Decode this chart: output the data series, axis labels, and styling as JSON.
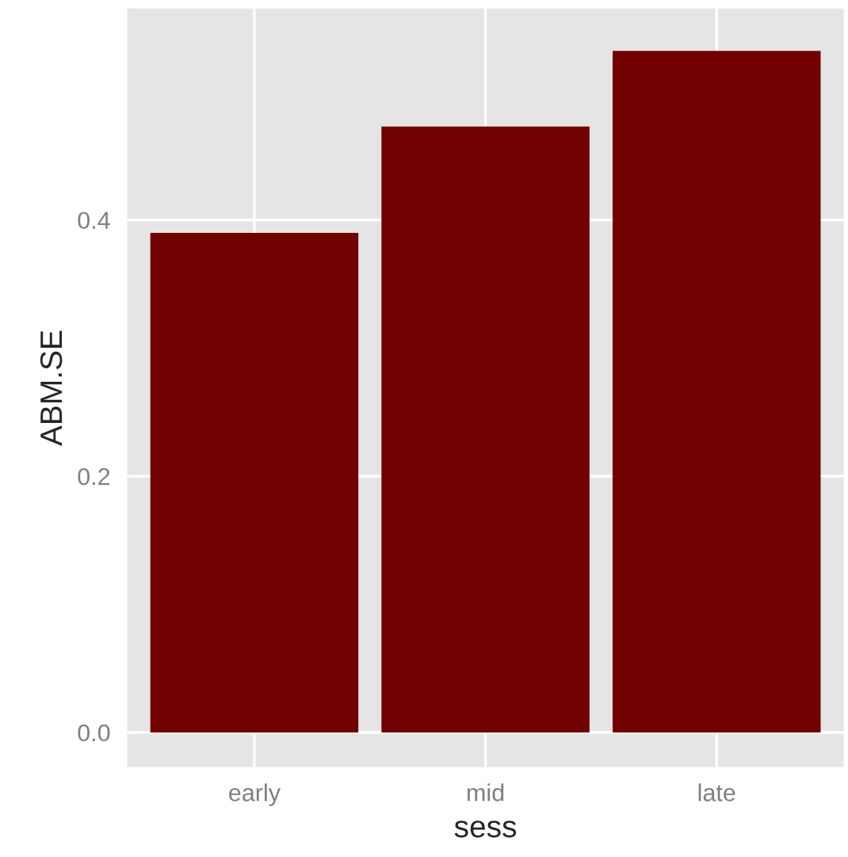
{
  "chart_data": {
    "type": "bar",
    "xlabel": "sess",
    "ylabel": "ABM.SE",
    "categories": [
      "early",
      "mid",
      "late"
    ],
    "values": [
      0.39,
      0.473,
      0.532
    ],
    "color": "#730000",
    "ylim": [
      -0.027,
      0.565
    ],
    "yticks": [
      {
        "value": 0,
        "label": "0.0"
      },
      {
        "value": 0.2,
        "label": "0.2"
      },
      {
        "value": 0.4,
        "label": "0.4"
      }
    ],
    "grid": true
  }
}
